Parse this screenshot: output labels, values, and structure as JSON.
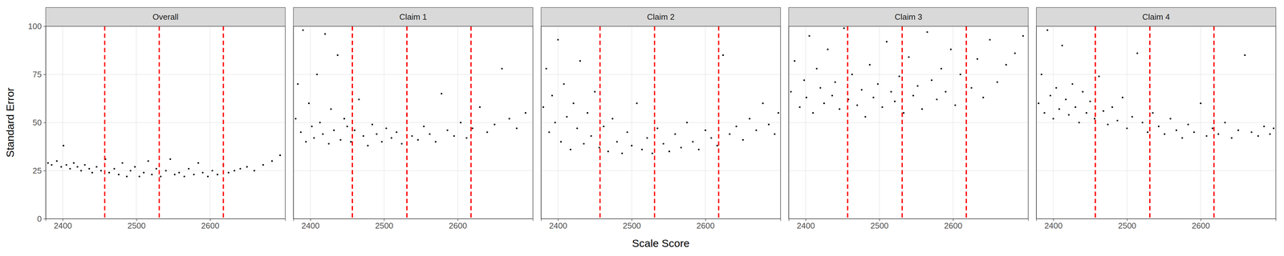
{
  "chart_data": {
    "type": "scatter",
    "x_label": "Scale Score",
    "y_label": "Standard Error",
    "xlim": [
      2377,
      2702
    ],
    "ylim": [
      0,
      100
    ],
    "xticks": [
      2400,
      2500,
      2600
    ],
    "yticks": [
      0,
      25,
      50,
      75,
      100
    ],
    "grid": true,
    "color": "#000000",
    "vlines": {
      "values": [
        2457,
        2531,
        2618
      ],
      "color": "#ff0000",
      "line_style": "dashed"
    },
    "panels": [
      {
        "title": "Overall",
        "x": [
          2380,
          2385,
          2392,
          2398,
          2401,
          2405,
          2410,
          2415,
          2420,
          2425,
          2430,
          2436,
          2440,
          2446,
          2452,
          2458,
          2463,
          2470,
          2476,
          2481,
          2487,
          2492,
          2498,
          2504,
          2510,
          2516,
          2521,
          2527,
          2533,
          2540,
          2546,
          2552,
          2558,
          2565,
          2571,
          2578,
          2584,
          2590,
          2597,
          2603,
          2610,
          2618,
          2625,
          2633,
          2641,
          2650,
          2660,
          2672,
          2684,
          2695
        ],
        "values": [
          29,
          28,
          30,
          27,
          38,
          28,
          26,
          29,
          27,
          25,
          28,
          26,
          24,
          27,
          25,
          31,
          24,
          26,
          23,
          29,
          22,
          25,
          27,
          22,
          24,
          30,
          23,
          26,
          22,
          25,
          31,
          23,
          24,
          22,
          26,
          23,
          29,
          24,
          22,
          25,
          23,
          28,
          24,
          25,
          26,
          27,
          25,
          28,
          30,
          33
        ]
      },
      {
        "title": "Claim 1",
        "x": [
          2380,
          2383,
          2387,
          2390,
          2394,
          2398,
          2402,
          2405,
          2409,
          2413,
          2417,
          2420,
          2425,
          2428,
          2432,
          2437,
          2441,
          2446,
          2450,
          2455,
          2460,
          2466,
          2472,
          2478,
          2484,
          2490,
          2497,
          2503,
          2510,
          2517,
          2524,
          2531,
          2538,
          2546,
          2554,
          2562,
          2570,
          2578,
          2586,
          2595,
          2604,
          2612,
          2620,
          2630,
          2640,
          2650,
          2660,
          2670,
          2680,
          2692
        ],
        "values": [
          52,
          70,
          45,
          98,
          40,
          60,
          48,
          42,
          75,
          50,
          44,
          96,
          39,
          57,
          46,
          85,
          41,
          52,
          48,
          40,
          46,
          62,
          43,
          38,
          49,
          44,
          40,
          47,
          42,
          45,
          39,
          54,
          43,
          41,
          48,
          44,
          40,
          65,
          46,
          43,
          50,
          42,
          47,
          58,
          45,
          49,
          78,
          52,
          47,
          55
        ]
      },
      {
        "title": "Claim 2",
        "x": [
          2380,
          2384,
          2388,
          2392,
          2396,
          2400,
          2404,
          2408,
          2412,
          2417,
          2421,
          2426,
          2430,
          2435,
          2440,
          2445,
          2450,
          2456,
          2462,
          2468,
          2474,
          2480,
          2487,
          2494,
          2500,
          2507,
          2514,
          2521,
          2528,
          2535,
          2543,
          2551,
          2559,
          2567,
          2575,
          2583,
          2591,
          2600,
          2608,
          2616,
          2624,
          2633,
          2642,
          2651,
          2660,
          2669,
          2678,
          2686,
          2694,
          2699
        ],
        "values": [
          58,
          78,
          45,
          64,
          50,
          93,
          40,
          70,
          53,
          36,
          60,
          47,
          82,
          39,
          55,
          43,
          66,
          37,
          48,
          35,
          52,
          40,
          34,
          45,
          38,
          60,
          36,
          42,
          34,
          47,
          39,
          35,
          44,
          37,
          50,
          40,
          36,
          46,
          42,
          38,
          85,
          44,
          48,
          41,
          52,
          46,
          60,
          49,
          44,
          55
        ]
      },
      {
        "title": "Claim 3",
        "x": [
          2380,
          2385,
          2392,
          2398,
          2401,
          2405,
          2410,
          2415,
          2420,
          2425,
          2430,
          2436,
          2440,
          2446,
          2452,
          2458,
          2463,
          2470,
          2476,
          2481,
          2487,
          2492,
          2498,
          2504,
          2510,
          2516,
          2521,
          2527,
          2533,
          2540,
          2546,
          2552,
          2558,
          2565,
          2571,
          2578,
          2584,
          2590,
          2597,
          2603,
          2610,
          2618,
          2625,
          2633,
          2641,
          2650,
          2660,
          2672,
          2684,
          2695
        ],
        "values": [
          66,
          82,
          58,
          72,
          63,
          95,
          55,
          78,
          68,
          60,
          88,
          64,
          71,
          57,
          99,
          62,
          75,
          59,
          67,
          53,
          80,
          63,
          70,
          58,
          92,
          66,
          61,
          74,
          55,
          84,
          64,
          69,
          57,
          97,
          72,
          62,
          78,
          66,
          88,
          59,
          75,
          100,
          68,
          83,
          63,
          93,
          71,
          80,
          86,
          95
        ]
      },
      {
        "title": "Claim 4",
        "x": [
          2380,
          2384,
          2388,
          2392,
          2396,
          2400,
          2404,
          2408,
          2412,
          2417,
          2421,
          2426,
          2430,
          2435,
          2440,
          2445,
          2450,
          2456,
          2462,
          2468,
          2474,
          2480,
          2487,
          2494,
          2500,
          2507,
          2514,
          2521,
          2528,
          2535,
          2543,
          2551,
          2559,
          2567,
          2575,
          2583,
          2591,
          2600,
          2608,
          2616,
          2624,
          2633,
          2642,
          2651,
          2660,
          2669,
          2678,
          2686,
          2694,
          2699
        ],
        "values": [
          60,
          75,
          55,
          98,
          64,
          52,
          68,
          57,
          90,
          62,
          54,
          70,
          58,
          50,
          66,
          55,
          61,
          52,
          74,
          56,
          49,
          58,
          51,
          63,
          47,
          53,
          86,
          50,
          45,
          55,
          48,
          44,
          52,
          46,
          42,
          49,
          45,
          60,
          43,
          47,
          44,
          50,
          42,
          46,
          85,
          45,
          43,
          48,
          44,
          47
        ]
      }
    ]
  }
}
